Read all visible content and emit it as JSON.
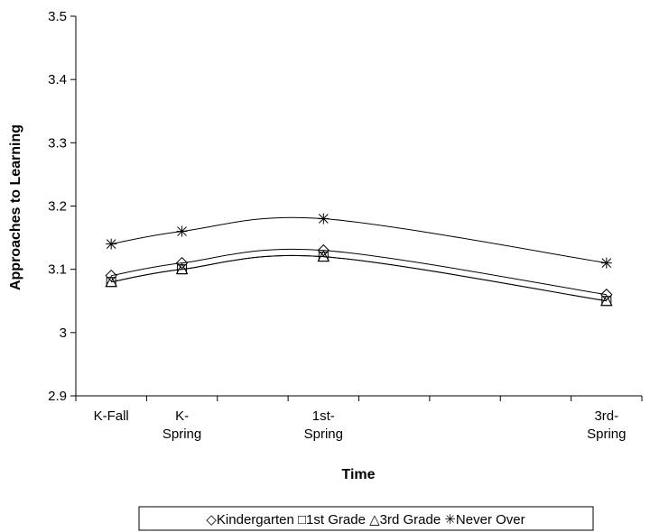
{
  "chart_data": {
    "type": "line",
    "xlabel": "Time",
    "ylabel": "Approaches to Learning",
    "ylim": [
      2.9,
      3.5
    ],
    "yticks": [
      "2.9",
      "3",
      "3.1",
      "3.2",
      "3.3",
      "3.4",
      "3.5"
    ],
    "categories": [
      "K-Fall",
      "K-Spring",
      "1st-Spring",
      "3rd-Spring"
    ],
    "category_labels": [
      [
        "K-Fall"
      ],
      [
        "K-",
        "Spring"
      ],
      [
        "1st-",
        "Spring"
      ],
      [
        "3rd-",
        "Spring"
      ]
    ],
    "x": [
      0,
      1,
      3,
      7
    ],
    "xlim": [
      -0.5,
      7.5
    ],
    "grid": false,
    "legend_position": "bottom",
    "series": [
      {
        "name": "Kindergarten",
        "marker": "diamond",
        "values": [
          3.09,
          3.11,
          3.13,
          3.06
        ]
      },
      {
        "name": "1st Grade",
        "marker": "square",
        "values": [
          3.08,
          3.1,
          3.12,
          3.05
        ]
      },
      {
        "name": "3rd Grade",
        "marker": "triangle",
        "values": [
          3.08,
          3.1,
          3.12,
          3.05
        ]
      },
      {
        "name": "Never Over",
        "marker": "asterisk",
        "values": [
          3.14,
          3.16,
          3.18,
          3.11
        ]
      }
    ],
    "legend_symbols": {
      "diamond": "◇",
      "square": "□",
      "triangle": "△",
      "asterisk": "✳"
    }
  }
}
